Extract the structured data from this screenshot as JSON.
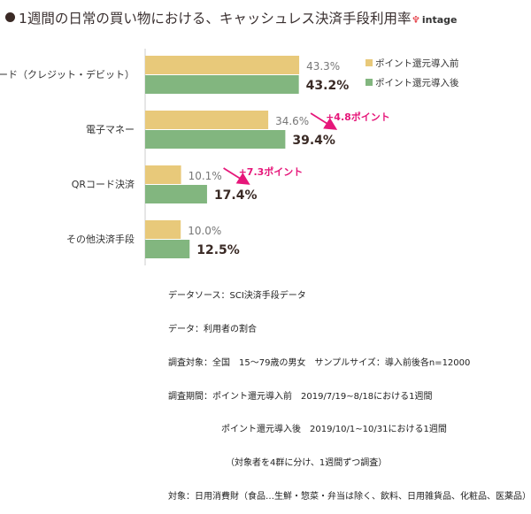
{
  "title": "1週間の日常の買い物における、キャッシュレス決済手段利用率",
  "logo": "intage",
  "chart_data": {
    "type": "bar",
    "orientation": "horizontal",
    "title": "1週間の日常の買い物における、キャッシュレス決済手段利用率",
    "categories": [
      "カード（クレジット・デビット）",
      "電子マネー",
      "QRコード決済",
      "その他決済手段"
    ],
    "series": [
      {
        "name": "ポイント還元導入前",
        "values": [
          43.3,
          34.6,
          10.1,
          10.0
        ],
        "color": "#e8c97a",
        "labels": [
          "43.3%",
          "34.6%",
          "10.1%",
          "10.0%"
        ]
      },
      {
        "name": "ポイント還元導入後",
        "values": [
          43.2,
          39.4,
          17.4,
          12.5
        ],
        "color": "#82b67f",
        "labels": [
          "43.2%",
          "39.4%",
          "17.4%",
          "12.5%"
        ]
      }
    ],
    "annotations": [
      {
        "category": "電子マネー",
        "text": "+4.8ポイント",
        "color": "#e6177a"
      },
      {
        "category": "QRコード決済",
        "text": "+7.3ポイント",
        "color": "#e6177a"
      }
    ],
    "legend": "top-right",
    "grid": false
  },
  "notes": [
    "データソース：SCI決済手段データ",
    "データ：利用者の割合",
    "調査対象：全国　15～79歳の男女　サンプルサイズ：導入前後各n=12000",
    "調査期間：ポイント還元導入前　2019/7/19~8/18における1週間",
    "　　　　　　ポイント還元導入後　2019/10/1~10/31における1週間",
    "　　　　　　　（対象者を4群に分け、1週間ずつ調査）",
    "対象：日用消費財（食品…生鮮・惣菜・弁当は除く、飲料、日用雑貨品、化粧品、医薬品）"
  ]
}
